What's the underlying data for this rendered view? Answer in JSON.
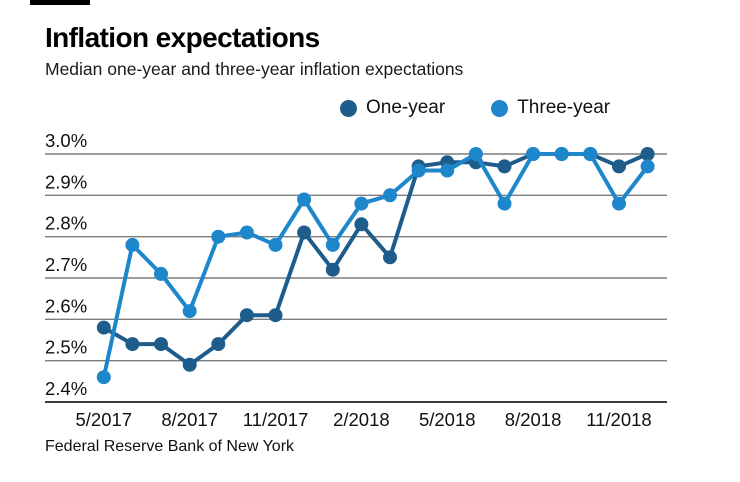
{
  "header": {
    "title": "Inflation expectations",
    "subtitle": "Median one-year and three-year inflation expectations"
  },
  "footer": {
    "source": "Federal Reserve Bank of New York"
  },
  "colors": {
    "one_year": "#1E5C8B",
    "three_year": "#1E87CB",
    "gridline": "#7d7d7d",
    "axis_line": "#3c3c3c",
    "text": "#111111"
  },
  "chart_data": {
    "type": "line",
    "title": "Inflation expectations",
    "subtitle": "Median one-year and three-year inflation expectations",
    "source": "Federal Reserve Bank of New York",
    "categories": [
      "5/2017",
      "6/2017",
      "7/2017",
      "8/2017",
      "9/2017",
      "10/2017",
      "11/2017",
      "12/2017",
      "1/2018",
      "2/2018",
      "3/2018",
      "4/2018",
      "5/2018",
      "6/2018",
      "7/2018",
      "8/2018",
      "9/2018",
      "10/2018",
      "11/2018",
      "12/2018"
    ],
    "x_tick_labels": [
      "5/2017",
      "8/2017",
      "11/2017",
      "2/2018",
      "5/2018",
      "8/2018",
      "11/2018"
    ],
    "y_tick_labels": [
      "3.0%",
      "2.9%",
      "2.8%",
      "2.7%",
      "2.6%",
      "2.5%",
      "2.4%"
    ],
    "ylim": [
      2.4,
      3.0
    ],
    "grid": true,
    "legend_position": "top-right",
    "series": [
      {
        "name": "One-year",
        "color": "#1E5C8B",
        "values": [
          2.58,
          2.54,
          2.54,
          2.49,
          2.54,
          2.61,
          2.61,
          2.81,
          2.72,
          2.83,
          2.75,
          2.97,
          2.98,
          2.98,
          2.97,
          3.0,
          3.0,
          3.0,
          2.97,
          3.0
        ]
      },
      {
        "name": "Three-year",
        "color": "#1E87CB",
        "values": [
          2.46,
          2.78,
          2.71,
          2.62,
          2.8,
          2.81,
          2.78,
          2.89,
          2.78,
          2.88,
          2.9,
          2.96,
          2.96,
          3.0,
          2.88,
          3.0,
          3.0,
          3.0,
          2.88,
          2.97
        ]
      }
    ]
  }
}
